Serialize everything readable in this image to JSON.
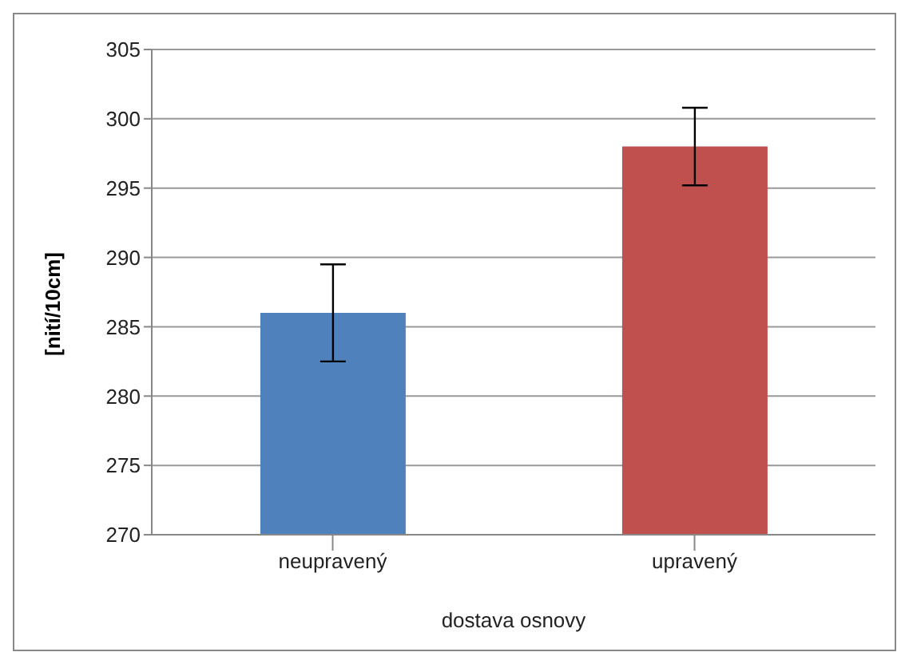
{
  "chart_data": {
    "type": "bar",
    "categories": [
      "neupravený",
      "upravený"
    ],
    "values": [
      286,
      298
    ],
    "colors": [
      "#4f81bd",
      "#c0504d"
    ],
    "errors": [
      3.5,
      2.8
    ],
    "xlabel": "dostava osnovy",
    "ylabel": "[nití/10cm]",
    "ylim": [
      270,
      305
    ],
    "yticks": [
      270,
      275,
      280,
      285,
      290,
      295,
      300,
      305
    ],
    "grid": "y"
  }
}
